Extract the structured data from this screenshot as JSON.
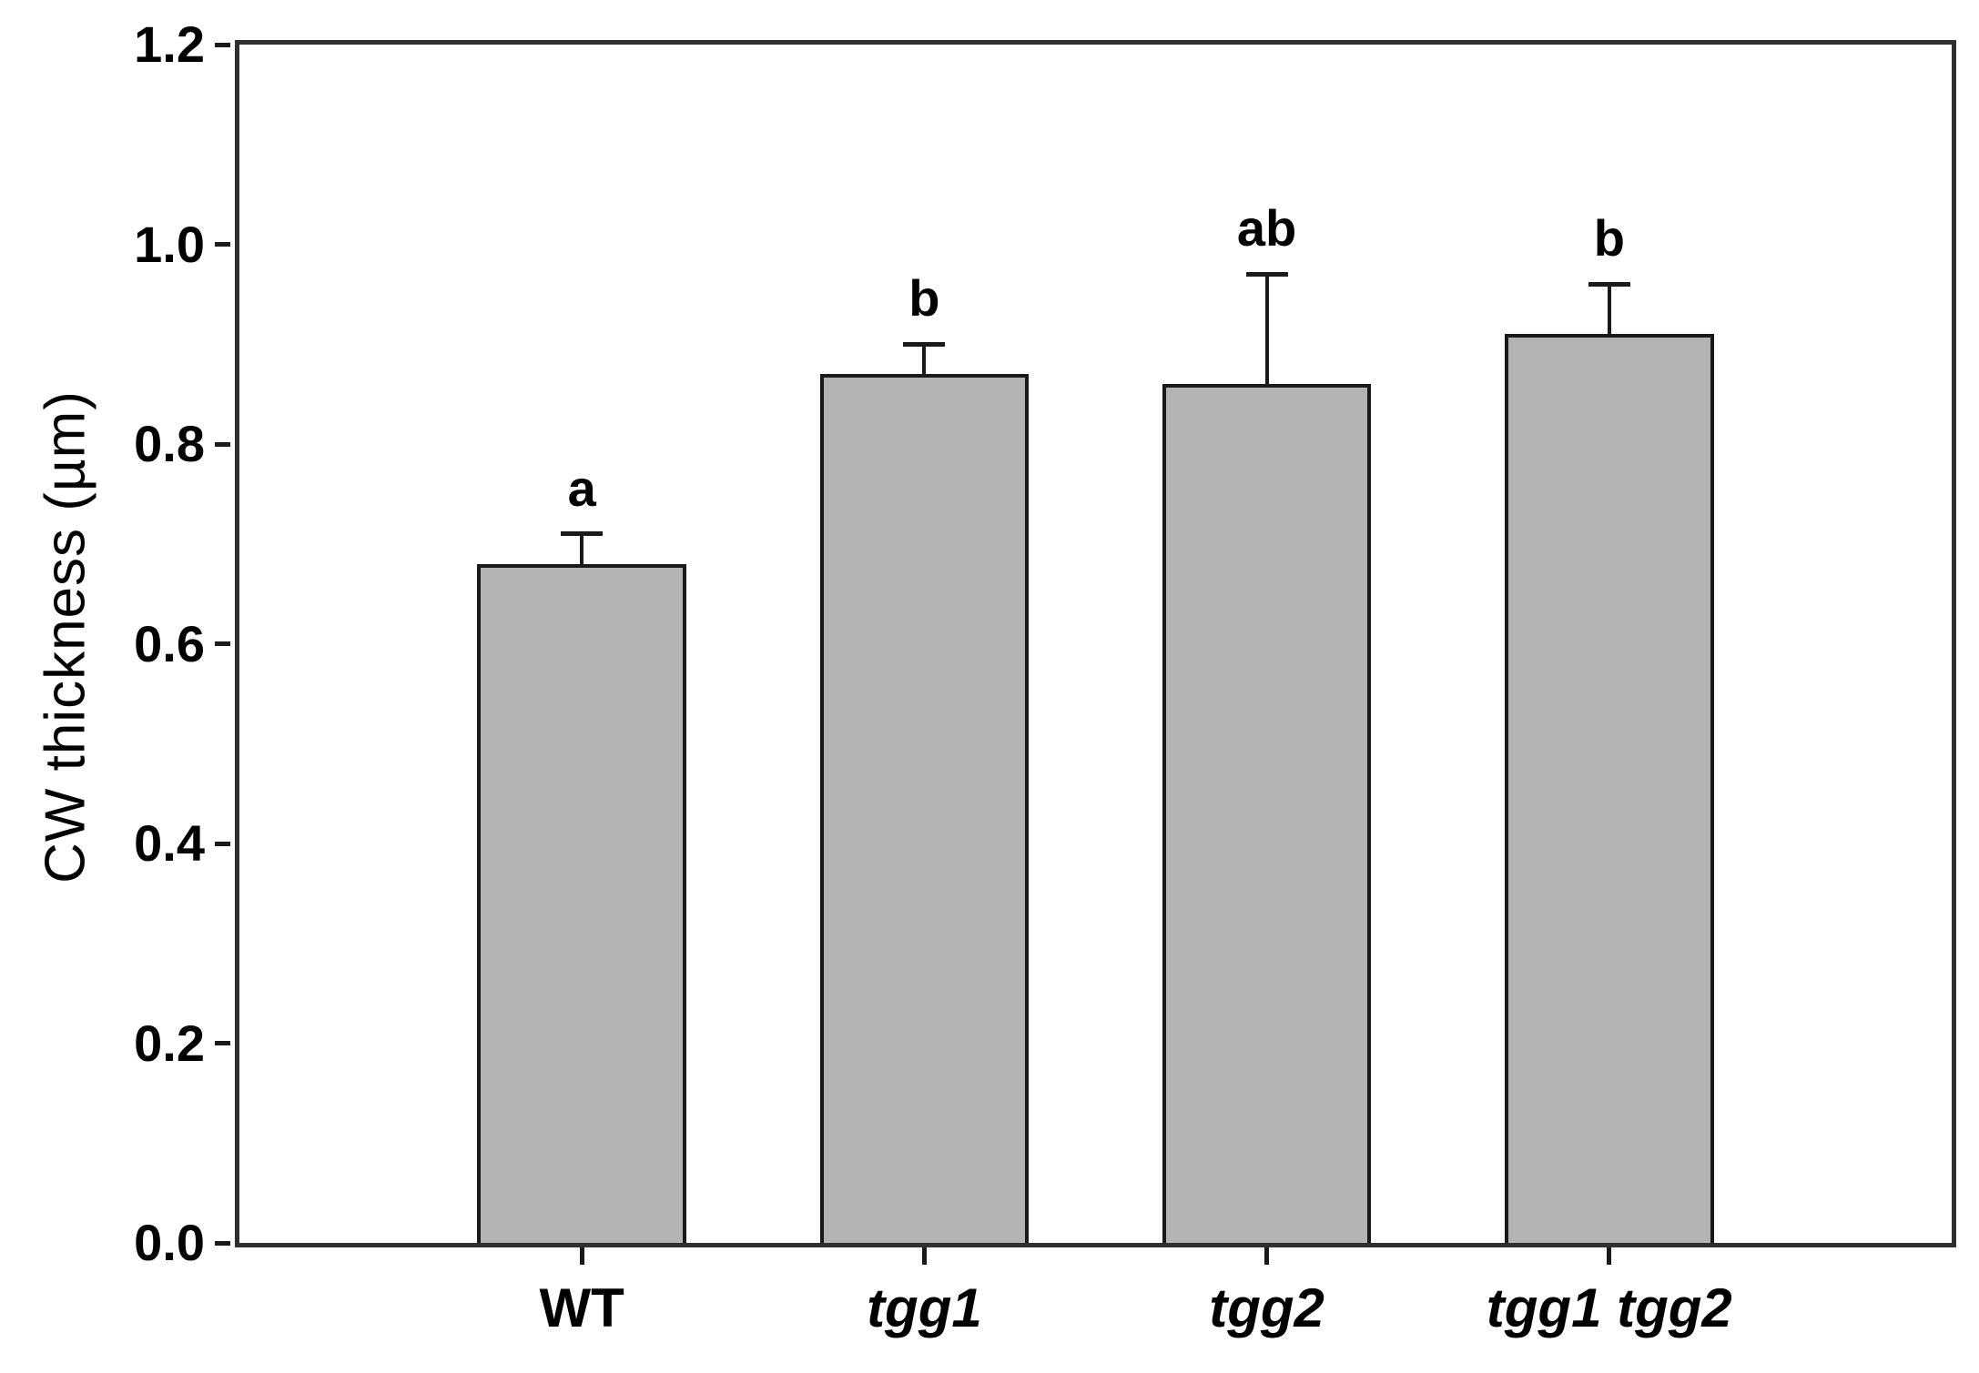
{
  "figure": {
    "background": "#ffffff"
  },
  "chart_data": {
    "type": "bar",
    "title": "",
    "xlabel": "",
    "ylabel": "CW thickness (µm)",
    "ylim": [
      0.0,
      1.2
    ],
    "yticks": [
      "0.0",
      "0.2",
      "0.4",
      "0.6",
      "0.8",
      "1.0",
      "1.2"
    ],
    "grid": false,
    "legend": "none",
    "frame": "full-box",
    "categories": [
      "WT",
      "tgg1",
      "tgg2",
      "tgg1 tgg2"
    ],
    "categories_italic": [
      false,
      true,
      true,
      true
    ],
    "values": [
      0.68,
      0.87,
      0.86,
      0.91
    ],
    "errors_plus": [
      0.03,
      0.03,
      0.11,
      0.05
    ],
    "sig_letters": [
      "a",
      "b",
      "ab",
      "b"
    ],
    "bar_fill": "#b3b3b3",
    "bar_border": "#1a1a1a",
    "axis_color": "#2f2f2f",
    "text_color": "#000000"
  }
}
